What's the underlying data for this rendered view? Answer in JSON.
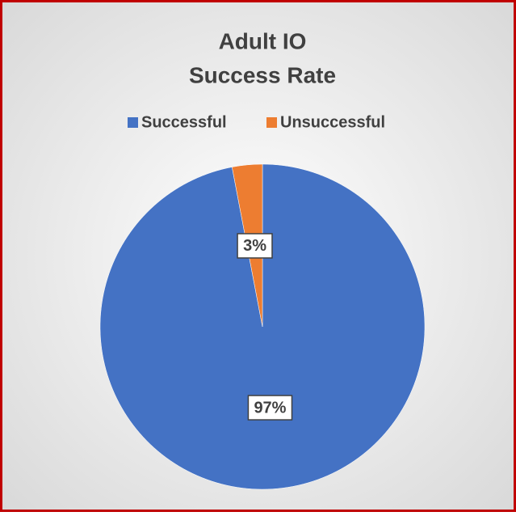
{
  "chart_data": {
    "type": "pie",
    "title": [
      "Adult IO",
      "Success Rate"
    ],
    "categories": [
      "Successful",
      "Unsuccessful"
    ],
    "values": [
      97,
      3
    ],
    "value_labels": [
      "97%",
      "3%"
    ],
    "colors": [
      "#4472c4",
      "#ed7d31"
    ],
    "legend": "top"
  }
}
